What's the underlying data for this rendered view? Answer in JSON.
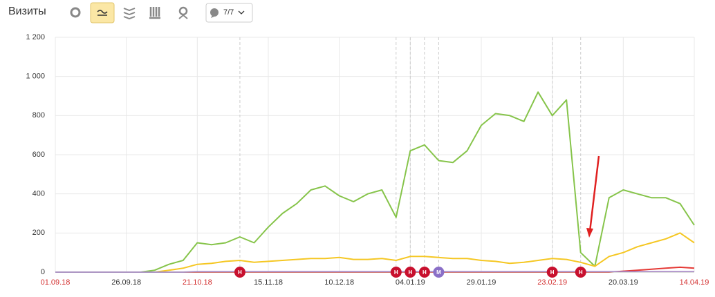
{
  "header": {
    "title": "Визиты",
    "filter_label": "7/7"
  },
  "chart_data": {
    "type": "line",
    "x": [
      "01.09.18",
      "06.09.18",
      "11.09.18",
      "16.09.18",
      "21.09.18",
      "26.09.18",
      "01.10.18",
      "06.10.18",
      "11.10.18",
      "16.10.18",
      "21.10.18",
      "26.10.18",
      "31.10.18",
      "05.11.18",
      "10.11.18",
      "15.11.18",
      "20.11.18",
      "25.11.18",
      "30.11.18",
      "05.12.18",
      "10.12.18",
      "15.12.18",
      "20.12.18",
      "25.12.18",
      "30.12.18",
      "04.01.19",
      "09.01.19",
      "14.01.19",
      "19.01.19",
      "24.01.19",
      "29.01.19",
      "03.02.19",
      "08.02.19",
      "13.02.19",
      "18.02.19",
      "23.02.19",
      "28.02.19",
      "05.03.19",
      "10.03.19",
      "15.03.19",
      "20.03.19",
      "25.03.19",
      "30.03.19",
      "04.04.19",
      "09.04.19",
      "14.04.19"
    ],
    "series": [
      {
        "color": "#86c44a",
        "values": [
          0,
          0,
          0,
          0,
          0,
          0,
          0,
          10,
          40,
          60,
          150,
          140,
          150,
          180,
          150,
          230,
          300,
          350,
          420,
          440,
          390,
          360,
          400,
          420,
          280,
          620,
          650,
          570,
          560,
          620,
          750,
          810,
          800,
          770,
          920,
          800,
          880,
          100,
          30,
          380,
          420,
          400,
          380,
          380,
          350,
          240
        ]
      },
      {
        "color": "#f5c723",
        "values": [
          0,
          0,
          0,
          0,
          0,
          0,
          0,
          0,
          10,
          20,
          40,
          45,
          55,
          60,
          50,
          55,
          60,
          65,
          70,
          70,
          75,
          65,
          65,
          70,
          60,
          80,
          80,
          75,
          70,
          70,
          60,
          55,
          45,
          50,
          60,
          70,
          65,
          50,
          30,
          80,
          100,
          130,
          150,
          170,
          200,
          150
        ]
      },
      {
        "color": "#e53935",
        "values": [
          0,
          0,
          0,
          0,
          0,
          0,
          0,
          0,
          0,
          0,
          0,
          0,
          0,
          0,
          0,
          0,
          0,
          0,
          0,
          0,
          0,
          0,
          0,
          0,
          0,
          0,
          0,
          0,
          0,
          0,
          0,
          0,
          0,
          0,
          0,
          0,
          0,
          0,
          0,
          0,
          5,
          10,
          15,
          20,
          25,
          20
        ]
      },
      {
        "color": "#9c6fc9",
        "values": [
          0,
          0,
          0,
          0,
          0,
          0,
          0,
          0,
          0,
          0,
          2,
          2,
          2,
          2,
          2,
          2,
          2,
          2,
          2,
          2,
          2,
          2,
          2,
          2,
          2,
          2,
          2,
          2,
          2,
          2,
          2,
          2,
          2,
          2,
          2,
          2,
          2,
          2,
          2,
          2,
          2,
          2,
          2,
          2,
          2,
          2
        ]
      }
    ],
    "ylim": [
      0,
      1200
    ],
    "yticks": [
      0,
      200,
      400,
      600,
      800,
      {
        "value": 1000,
        "label": "1 000"
      },
      {
        "value": 1200,
        "label": "1 200"
      }
    ],
    "xticks": [
      "01.09.18",
      "26.09.18",
      "21.10.18",
      "15.11.18",
      "10.12.18",
      "04.01.19",
      "29.01.19",
      "23.02.19",
      "20.03.19",
      "14.04.19"
    ],
    "xtick_colors": [
      "#d32f2f",
      "#333333",
      "#d32f2f",
      "#333333",
      "#333333",
      "#333333",
      "#333333",
      "#d32f2f",
      "#333333",
      "#d32f2f"
    ],
    "grid": true,
    "annotations": [
      {
        "x": "05.11.18",
        "label": "Н",
        "color": "#c8102e"
      },
      {
        "x": "30.12.18",
        "label": "Н",
        "color": "#c8102e"
      },
      {
        "x": "04.01.19",
        "label": "Н",
        "color": "#c8102e"
      },
      {
        "x": "09.01.19",
        "label": "Н",
        "color": "#c8102e"
      },
      {
        "x": "14.01.19",
        "label": "М",
        "color": "#8a6fc7"
      },
      {
        "x": "23.02.19",
        "label": "Н",
        "color": "#c8102e"
      },
      {
        "x": "05.03.19",
        "label": "Н",
        "color": "#c8102e"
      }
    ]
  }
}
